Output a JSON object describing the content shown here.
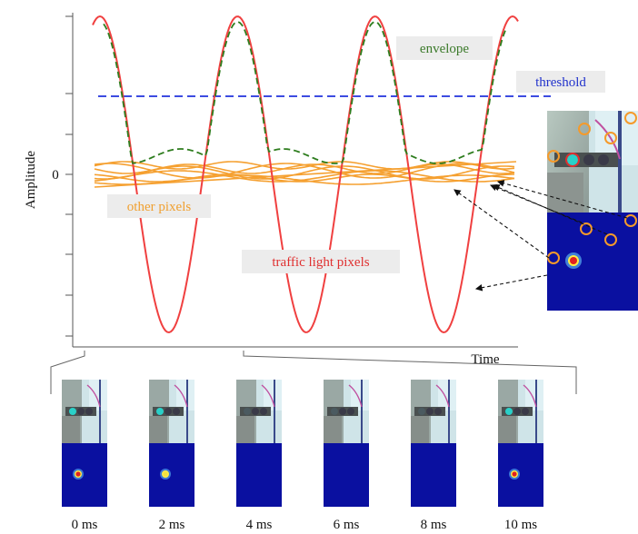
{
  "axes": {
    "ylabel": "Amplitude",
    "xlabel": "Time",
    "zero_tick": "0"
  },
  "labels": {
    "envelope": "envelope",
    "threshold": "threshold",
    "other_pixels": "other pixels",
    "traffic_light_pixels": "traffic light pixels"
  },
  "frames": [
    {
      "time": "0 ms",
      "light_level": 1.0
    },
    {
      "time": "2 ms",
      "light_level": 0.6
    },
    {
      "time": "4 ms",
      "light_level": 0.0
    },
    {
      "time": "6 ms",
      "light_level": 0.0
    },
    {
      "time": "8 ms",
      "light_level": 0.0
    },
    {
      "time": "10 ms",
      "light_level": 1.0
    }
  ],
  "colors": {
    "traffic_light": "#f04040",
    "other_pixels": "#f5a030",
    "envelope": "#2e7d1e",
    "threshold": "#2233dd",
    "envelope_text": "#3b7a2a",
    "threshold_text": "#2233cc",
    "other_text": "#f0a030",
    "traffic_text": "#e03030",
    "heatmap_bg": "#0a10a0"
  }
}
